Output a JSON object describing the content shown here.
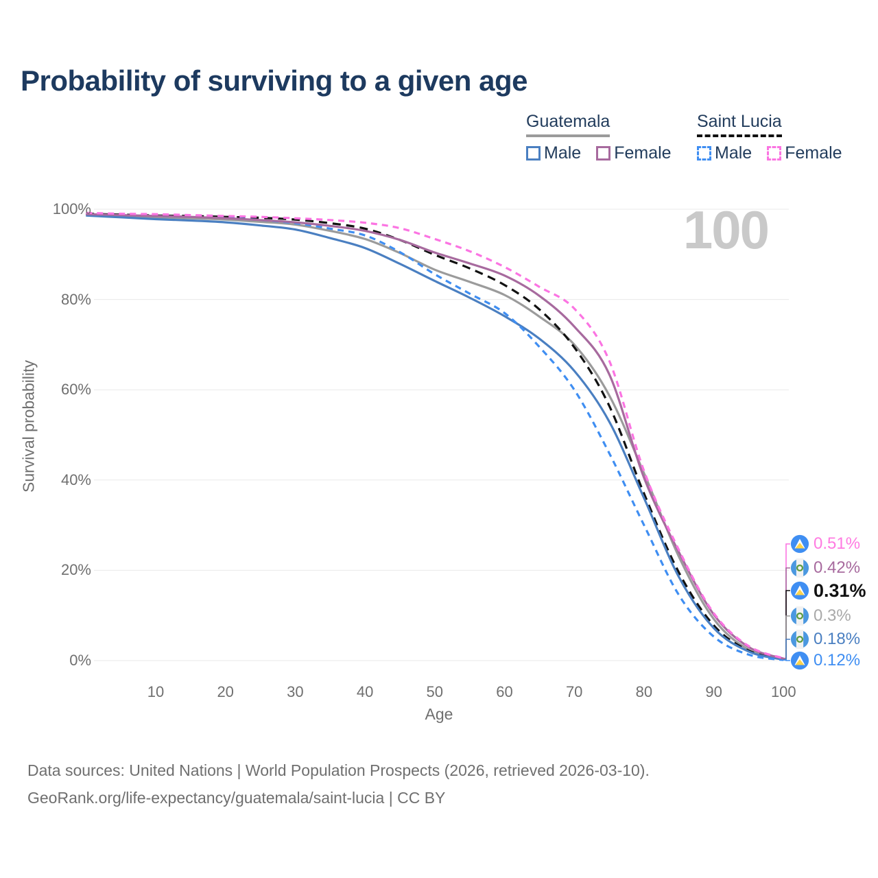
{
  "title": "Probability of surviving to a given age",
  "watermark_age": "100",
  "colors": {
    "title_text": "#1d3a5f",
    "axis_text": "#6f6f6f",
    "grid": "#e9e9e9",
    "watermark": "#c9c9c9",
    "guatemala_male": "#4a7fc1",
    "guatemala_female": "#a76a9e",
    "guatemala_total": "#9b9b9b",
    "saintlucia_male": "#3f8ef2",
    "saintlucia_female": "#fb74e2",
    "saintlucia_total": "#111111"
  },
  "legend": {
    "groups": [
      {
        "label": "Guatemala",
        "underline_color": "#9b9b9b",
        "underline_dashed": false,
        "items": [
          {
            "label": "Male",
            "color": "#4a7fc1",
            "dashed": false
          },
          {
            "label": "Female",
            "color": "#a76a9e",
            "dashed": false
          }
        ]
      },
      {
        "label": "Saint Lucia",
        "underline_color": "#111111",
        "underline_dashed": true,
        "items": [
          {
            "label": "Male",
            "color": "#3f8ef2",
            "dashed": true
          },
          {
            "label": "Female",
            "color": "#fb74e2",
            "dashed": true
          }
        ]
      }
    ]
  },
  "chart_data": {
    "type": "line",
    "title": "Probability of surviving to a given age",
    "xlabel": "Age",
    "ylabel": "Survival probability",
    "xlim": [
      0,
      100
    ],
    "ylim_pct": [
      0,
      100
    ],
    "x_ticks": [
      10,
      20,
      30,
      40,
      50,
      60,
      70,
      80,
      90,
      100
    ],
    "y_ticks_pct": [
      0,
      20,
      40,
      60,
      80,
      100
    ],
    "grid": "horizontal",
    "legend_position": "top-right",
    "frame_label": "100",
    "x": [
      0,
      5,
      10,
      15,
      20,
      25,
      30,
      35,
      40,
      45,
      50,
      55,
      60,
      65,
      70,
      75,
      80,
      85,
      90,
      95,
      100
    ],
    "series": [
      {
        "name": "Guatemala (both sexes)",
        "country": "Guatemala",
        "sex": "total",
        "color": "#9b9b9b",
        "dashed": false,
        "values": [
          98.8,
          98.5,
          98.2,
          98.0,
          97.7,
          97.2,
          96.6,
          95.2,
          93.4,
          90.3,
          86.6,
          83.9,
          81.0,
          76.2,
          70.0,
          58.8,
          41.5,
          23.0,
          9.2,
          2.4,
          0.3
        ],
        "end_label": "0.3%",
        "end_label_color": "#a9a9a9",
        "flag": "guatemala",
        "emphasis": false
      },
      {
        "name": "Saint Lucia (both sexes)",
        "country": "Saint Lucia",
        "sex": "total",
        "color": "#111111",
        "dashed": true,
        "values": [
          99.0,
          98.8,
          98.6,
          98.5,
          98.3,
          98.1,
          97.7,
          96.9,
          95.7,
          93.2,
          89.9,
          86.9,
          83.2,
          77.8,
          69.4,
          56.5,
          37.0,
          19.5,
          7.8,
          2.2,
          0.31
        ],
        "end_label": "0.31%",
        "end_label_color": "#111111",
        "flag": "saint-lucia",
        "emphasis": true
      },
      {
        "name": "Guatemala Male",
        "country": "Guatemala",
        "sex": "male",
        "color": "#4a7fc1",
        "dashed": false,
        "values": [
          98.6,
          98.2,
          97.8,
          97.5,
          97.1,
          96.4,
          95.5,
          93.6,
          91.4,
          87.9,
          84.1,
          80.4,
          76.3,
          71.3,
          64.2,
          53.0,
          36.0,
          18.5,
          7.2,
          2.0,
          0.18
        ],
        "end_label": "0.18%",
        "end_label_color": "#4a7fc1",
        "flag": "guatemala",
        "emphasis": false
      },
      {
        "name": "Saint Lucia Male",
        "country": "Saint Lucia",
        "sex": "male",
        "color": "#3f8ef2",
        "dashed": true,
        "values": [
          99.0,
          98.7,
          98.5,
          98.3,
          98.1,
          97.6,
          96.9,
          95.7,
          94.2,
          90.5,
          85.6,
          81.3,
          77.0,
          69.5,
          60.0,
          46.0,
          30.0,
          14.5,
          5.3,
          1.3,
          0.12
        ],
        "end_label": "0.12%",
        "end_label_color": "#3f8ef2",
        "flag": "saint-lucia",
        "emphasis": false
      },
      {
        "name": "Guatemala Female",
        "country": "Guatemala",
        "sex": "female",
        "color": "#a76a9e",
        "dashed": false,
        "values": [
          98.9,
          98.7,
          98.5,
          98.3,
          98.0,
          97.6,
          97.1,
          96.3,
          95.2,
          93.2,
          90.4,
          88.0,
          85.3,
          80.8,
          74.0,
          63.5,
          40.5,
          24.0,
          10.2,
          3.0,
          0.42
        ],
        "end_label": "0.42%",
        "end_label_color": "#a76a9e",
        "flag": "guatemala",
        "emphasis": false
      },
      {
        "name": "Saint Lucia Female",
        "country": "Saint Lucia",
        "sex": "female",
        "color": "#fb74e2",
        "dashed": true,
        "values": [
          99.2,
          99.0,
          98.9,
          98.7,
          98.5,
          98.3,
          98.0,
          97.6,
          97.0,
          95.8,
          93.4,
          90.7,
          87.2,
          82.8,
          78.0,
          66.5,
          42.0,
          24.5,
          10.5,
          3.2,
          0.51
        ],
        "end_label": "0.51%",
        "end_label_color": "#ff7be1",
        "flag": "saint-lucia",
        "emphasis": false
      }
    ]
  },
  "footer": {
    "line1": "Data sources: United Nations | World Population Prospects (2026, retrieved 2026-03-10).",
    "line2": "GeoRank.org/life-expectancy/guatemala/saint-lucia | CC BY"
  }
}
